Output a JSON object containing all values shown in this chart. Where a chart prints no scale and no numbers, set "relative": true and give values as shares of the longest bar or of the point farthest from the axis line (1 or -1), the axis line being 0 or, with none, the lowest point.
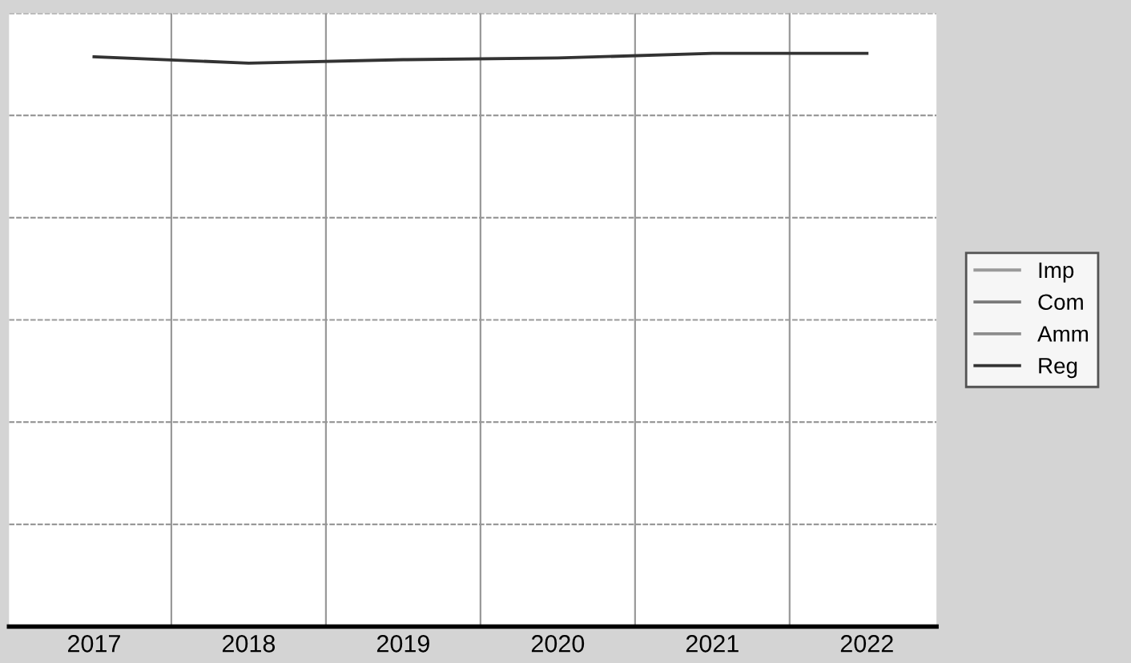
{
  "chart_data": {
    "type": "line",
    "relative": true,
    "categories": [
      "2017",
      "2018",
      "2019",
      "2020",
      "2021",
      "2022"
    ],
    "series": [
      {
        "name": "Imp",
        "color": "#9a9a9a",
        "values": [
          null,
          null,
          null,
          null,
          null,
          null
        ]
      },
      {
        "name": "Com",
        "color": "#7a7a7a",
        "values": [
          null,
          null,
          null,
          null,
          null,
          null
        ]
      },
      {
        "name": "Amm",
        "color": "#8c8c8c",
        "values": [
          null,
          null,
          null,
          null,
          null,
          null
        ]
      },
      {
        "name": "Reg",
        "color": "#333333",
        "values": [
          0.994,
          0.983,
          0.989,
          0.992,
          1,
          1
        ]
      }
    ],
    "grid": true,
    "legend": "right",
    "marker": "none",
    "line_style": "solid"
  }
}
